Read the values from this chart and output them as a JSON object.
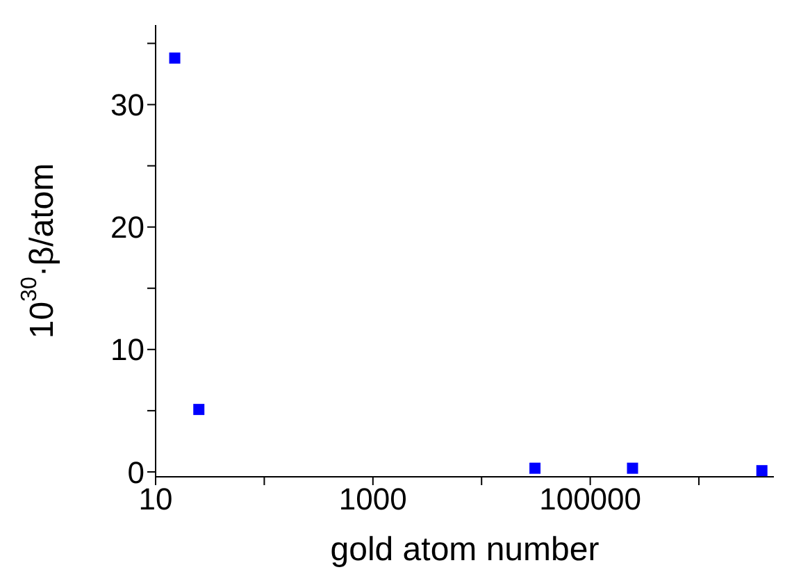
{
  "chart_data": {
    "type": "scatter",
    "xlabel": "gold atom number",
    "ylabel": "10$^{30}$·β/atom",
    "log": "x",
    "x": [
      15,
      25,
      31000,
      245000,
      3800000
    ],
    "series": [
      {
        "color": "#0000ff",
        "values": [
          33.8,
          5.1,
          0.3,
          0.3,
          0.1
        ]
      }
    ],
    "xlim": [
      10,
      4900000
    ],
    "xticks": [
      10,
      {
        "value": 100,
        "label": null
      },
      1000,
      {
        "value": 10000,
        "label": null
      },
      100000,
      {
        "value": 1000000,
        "label": null
      }
    ],
    "ylim": [
      -0.4,
      36.5
    ],
    "yticks": [
      0,
      {
        "value": 5,
        "label": null
      },
      10,
      {
        "value": 15,
        "label": null
      },
      20,
      {
        "value": 25,
        "label": null
      },
      30,
      {
        "value": 35,
        "label": null
      }
    ],
    "grid": false,
    "legend": false,
    "marker": "square"
  }
}
